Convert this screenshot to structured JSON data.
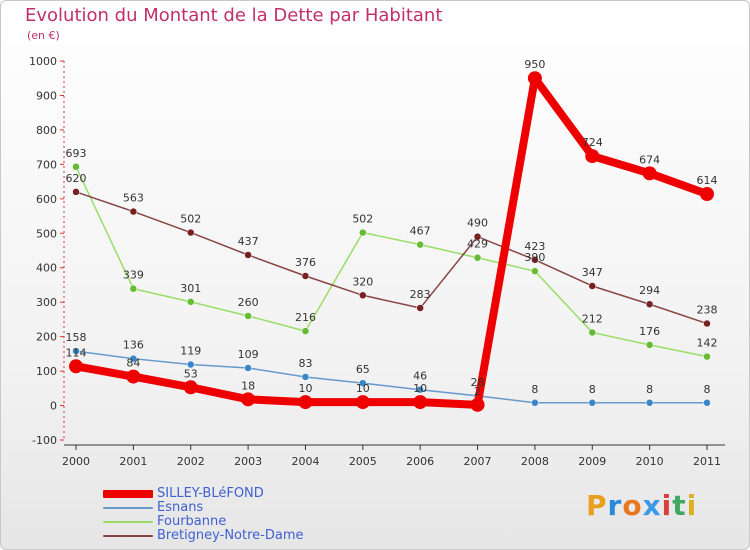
{
  "title": "Evolution du Montant de la Dette par Habitant",
  "subtitle": "(en €)",
  "brand": {
    "text": "Proxiti",
    "letters": [
      {
        "ch": "P",
        "color": "#e8a020"
      },
      {
        "ch": "r",
        "color": "#2a8ad8"
      },
      {
        "ch": "o",
        "color": "#e87820"
      },
      {
        "ch": "x",
        "color": "#3a9ae8"
      },
      {
        "ch": "i",
        "color": "#d84040"
      },
      {
        "ch": "t",
        "color": "#40a860"
      },
      {
        "ch": "i",
        "color": "#d8b020"
      }
    ]
  },
  "chart_data": {
    "type": "line",
    "title": "Evolution du Montant de la Dette par Habitant",
    "subtitle": "(en €)",
    "x": [
      "2000",
      "2001",
      "2002",
      "2003",
      "2004",
      "2005",
      "2006",
      "2007",
      "2008",
      "2009",
      "2010",
      "2011"
    ],
    "ylim": [
      -100,
      1000
    ],
    "yticks": [
      -100,
      0,
      100,
      200,
      300,
      400,
      500,
      600,
      700,
      800,
      900,
      1000
    ],
    "grid": false,
    "legend_position": "bottom-left",
    "series": [
      {
        "name": "SILLEY-BLéFOND",
        "color": "#ee0000",
        "width": 8,
        "marker_r": 7,
        "values": [
          114,
          84,
          53,
          18,
          10,
          10,
          10,
          2,
          950,
          724,
          674,
          614
        ],
        "labels": [
          "114",
          "84",
          "53",
          "18",
          "10",
          "10",
          "10",
          "2",
          "950",
          "724",
          "674",
          "614"
        ]
      },
      {
        "name": "Esnans",
        "color": "#6699cc",
        "marker_color": "#3a86c8",
        "width": 1.5,
        "marker_r": 3.5,
        "values": [
          158,
          136,
          119,
          109,
          83,
          65,
          46,
          28,
          8,
          8,
          8,
          8
        ],
        "labels": [
          "158",
          "136",
          "119",
          "109",
          "83",
          "65",
          "46",
          "28",
          "8",
          "8",
          "8",
          "8"
        ]
      },
      {
        "name": "Fourbanne",
        "color": "#99dd66",
        "marker_color": "#66bb33",
        "width": 1.5,
        "marker_r": 3.5,
        "values": [
          693,
          339,
          301,
          260,
          216,
          502,
          467,
          429,
          390,
          212,
          176,
          142
        ],
        "labels": [
          "693",
          "339",
          "301",
          "260",
          "216",
          "502",
          "467",
          "429",
          "390",
          "212",
          "176",
          "142"
        ]
      },
      {
        "name": "Bretigney-Notre-Dame",
        "color": "#884444",
        "marker_color": "#772222",
        "width": 1.5,
        "marker_r": 3.5,
        "values": [
          620,
          563,
          502,
          437,
          376,
          320,
          283,
          490,
          423,
          347,
          294,
          238
        ],
        "labels": [
          "620",
          "563",
          "502",
          "437",
          "376",
          "320",
          "283",
          "490",
          "423",
          "347",
          "294",
          "238"
        ]
      }
    ]
  }
}
